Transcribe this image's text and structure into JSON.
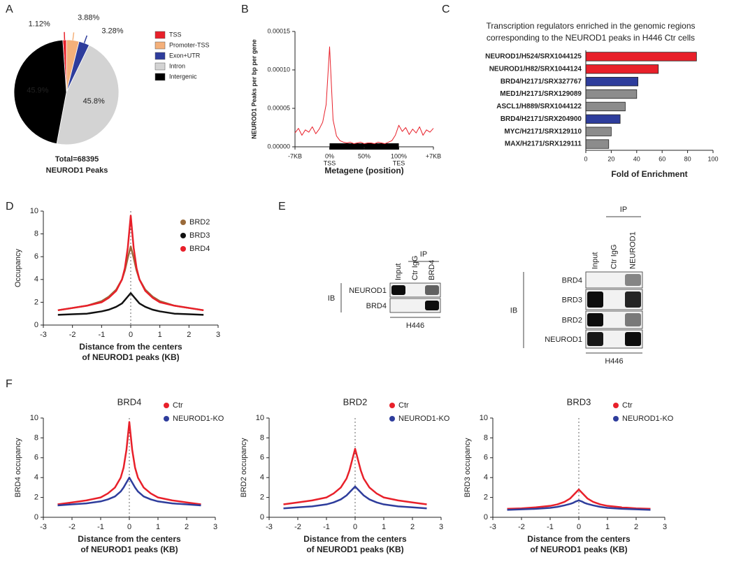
{
  "panels": [
    "A",
    "B",
    "C",
    "D",
    "E",
    "F"
  ],
  "chart_data": [
    {
      "type": "pie",
      "categories": [
        "TSS",
        "Promoter-TSS",
        "Exon+UTR",
        "Intron",
        "Intergenic"
      ],
      "values": [
        1.12,
        3.88,
        3.28,
        45.8,
        45.9
      ],
      "value_labels": [
        "1.12%",
        "3.88%",
        "3.28%",
        "45.8%",
        "45.9%"
      ],
      "colors": [
        "#e8202a",
        "#f4b07a",
        "#2e3d9c",
        "#d3d3d3",
        "#000000"
      ],
      "annotations": [
        "Total=68395",
        "NEUROD1 Peaks"
      ]
    },
    {
      "type": "line",
      "ylabel": "NEUROD1 Peaks per bp per gene",
      "xlabel": "Metagene (position)",
      "x": [
        0,
        5,
        10,
        15,
        20,
        25,
        30,
        35,
        40,
        45,
        50,
        55,
        60,
        65,
        70,
        75,
        80,
        85,
        90,
        95,
        100,
        105,
        110,
        115,
        120,
        125,
        130,
        135,
        140,
        145,
        150,
        155,
        160,
        165,
        170,
        175,
        180,
        185,
        190,
        195,
        200
      ],
      "series": [
        {
          "color": "#e8202a",
          "values": [
            1.8e-05,
            2.4e-05,
            1.5e-05,
            2.2e-05,
            1.9e-05,
            2.6e-05,
            1.7e-05,
            2.3e-05,
            3.2e-05,
            5.5e-05,
            0.00013,
            3.5e-05,
            1.4e-05,
            8e-06,
            6e-06,
            5e-06,
            6e-06,
            4e-06,
            5e-06,
            6e-06,
            4e-06,
            5e-06,
            5e-06,
            4e-06,
            6e-06,
            5e-06,
            4e-06,
            6e-06,
            8e-06,
            1.5e-05,
            2.8e-05,
            2e-05,
            2.5e-05,
            1.6e-05,
            2.3e-05,
            1.8e-05,
            2.6e-05,
            1.5e-05,
            2.2e-05,
            1.9e-05,
            2.4e-05
          ]
        }
      ],
      "xlim": [
        0,
        200
      ],
      "xticks": [
        {
          "value": 0,
          "label": "-7KB"
        },
        {
          "value": 50,
          "label": "0%",
          "sublabel": "TSS"
        },
        {
          "value": 100,
          "label": "50%"
        },
        {
          "value": 150,
          "label": "100%",
          "sublabel": "TES"
        },
        {
          "value": 200,
          "label": "+7KB"
        }
      ],
      "ylim": [
        0,
        0.00015
      ],
      "yticks": [
        {
          "value": 0,
          "label": "0.00000"
        },
        {
          "value": 5e-05,
          "label": "0.00005"
        },
        {
          "value": 0.0001,
          "label": "0.00010"
        },
        {
          "value": 0.00015,
          "label": "0.00015"
        }
      ]
    },
    {
      "type": "hbar",
      "title": [
        "Transcription regulators enriched in the genomic regions",
        "corresponding to the NEUROD1 peaks in H446 Ctr cells"
      ],
      "xlabel": "Fold of Enrichment",
      "categories": [
        "NEUROD1/H524/SRX1044125",
        "NEUROD1/H82/SRX1044124",
        "BRD4/H2171/SRX327767",
        "MED1/H2171/SRX129089",
        "ASCL1/H889/SRX1044122",
        "BRD4/H2171/SRX204900",
        "MYC/H2171/SRX129110",
        "MAX/H2171/SRX129111"
      ],
      "values": [
        87,
        57,
        41,
        40,
        31,
        27,
        20,
        18
      ],
      "colors": [
        "#e8202a",
        "#e8202a",
        "#2e3d9c",
        "#8c8c8c",
        "#8c8c8c",
        "#2e3d9c",
        "#8c8c8c",
        "#8c8c8c"
      ],
      "xlim": [
        0,
        100
      ],
      "xticks": [
        0,
        20,
        40,
        60,
        80,
        100
      ]
    },
    {
      "type": "line",
      "ylabel": "Occupancy",
      "xlabel": [
        "Distance from the centers",
        "of NEUROD1 peaks (KB)"
      ],
      "x": [
        -2.5,
        -2,
        -1.5,
        -1,
        -0.75,
        -0.5,
        -0.3,
        -0.2,
        -0.1,
        0,
        0.1,
        0.2,
        0.3,
        0.5,
        0.75,
        1,
        1.5,
        2,
        2.5
      ],
      "series": [
        {
          "name": "BRD2",
          "color": "#9a6a3a",
          "values": [
            1.3,
            1.5,
            1.7,
            2.1,
            2.5,
            3.1,
            4.0,
            4.8,
            5.9,
            6.9,
            5.9,
            4.8,
            4.0,
            3.1,
            2.5,
            2.1,
            1.7,
            1.5,
            1.3
          ]
        },
        {
          "name": "BRD3",
          "color": "#111111",
          "values": [
            0.9,
            0.95,
            1.0,
            1.2,
            1.35,
            1.6,
            1.9,
            2.2,
            2.5,
            2.8,
            2.5,
            2.2,
            1.9,
            1.6,
            1.35,
            1.2,
            1.0,
            0.95,
            0.9
          ]
        },
        {
          "name": "BRD4",
          "color": "#e8202a",
          "values": [
            1.3,
            1.5,
            1.7,
            2.0,
            2.4,
            3.0,
            4.0,
            5.0,
            6.8,
            9.6,
            6.8,
            5.0,
            4.0,
            3.0,
            2.4,
            2.0,
            1.7,
            1.5,
            1.3
          ]
        }
      ],
      "xlim": [
        -3,
        3
      ],
      "xticks": [
        -3,
        -2,
        -1,
        0,
        1,
        2,
        3
      ],
      "ylim": [
        0,
        10
      ],
      "yticks": [
        0,
        2,
        4,
        6,
        8,
        10
      ]
    },
    {
      "type": "line",
      "title": "BRD4",
      "ylabel": "BRD4 occupancy",
      "xlabel": [
        "Distance from the centers",
        "of NEUROD1 peaks (KB)"
      ],
      "x": [
        -2.5,
        -2,
        -1.5,
        -1,
        -0.75,
        -0.5,
        -0.3,
        -0.2,
        -0.1,
        0,
        0.1,
        0.2,
        0.3,
        0.5,
        0.75,
        1,
        1.5,
        2,
        2.5
      ],
      "series": [
        {
          "name": "Ctr",
          "color": "#e8202a",
          "values": [
            1.3,
            1.5,
            1.7,
            2.0,
            2.4,
            3.0,
            4.0,
            5.0,
            6.8,
            9.6,
            6.8,
            5.0,
            4.0,
            3.0,
            2.4,
            2.0,
            1.7,
            1.5,
            1.3
          ]
        },
        {
          "name": "NEUROD1-KO",
          "color": "#2e3d9c",
          "values": [
            1.2,
            1.3,
            1.4,
            1.6,
            1.8,
            2.1,
            2.6,
            3.0,
            3.5,
            4.0,
            3.5,
            3.0,
            2.6,
            2.1,
            1.8,
            1.6,
            1.4,
            1.3,
            1.2
          ]
        }
      ],
      "xlim": [
        -3,
        3
      ],
      "xticks": [
        -3,
        -2,
        -1,
        0,
        1,
        2,
        3
      ],
      "ylim": [
        0,
        10
      ],
      "yticks": [
        0,
        2,
        4,
        6,
        8,
        10
      ]
    },
    {
      "type": "line",
      "title": "BRD2",
      "ylabel": "BRD2 occupancy",
      "xlabel": [
        "Distance from the centers",
        "of NEUROD1 peaks (KB)"
      ],
      "x": [
        -2.5,
        -2,
        -1.5,
        -1,
        -0.75,
        -0.5,
        -0.3,
        -0.2,
        -0.1,
        0,
        0.1,
        0.2,
        0.3,
        0.5,
        0.75,
        1,
        1.5,
        2,
        2.5
      ],
      "series": [
        {
          "name": "Ctr",
          "color": "#e8202a",
          "values": [
            1.3,
            1.5,
            1.7,
            2.0,
            2.4,
            3.0,
            3.9,
            4.7,
            5.8,
            6.9,
            5.8,
            4.7,
            3.9,
            3.0,
            2.4,
            2.0,
            1.7,
            1.5,
            1.3
          ]
        },
        {
          "name": "NEUROD1-KO",
          "color": "#2e3d9c",
          "values": [
            0.9,
            1.0,
            1.1,
            1.3,
            1.5,
            1.8,
            2.2,
            2.5,
            2.8,
            3.1,
            2.8,
            2.5,
            2.2,
            1.8,
            1.5,
            1.3,
            1.1,
            1.0,
            0.9
          ]
        }
      ],
      "xlim": [
        -3,
        3
      ],
      "xticks": [
        -3,
        -2,
        -1,
        0,
        1,
        2,
        3
      ],
      "ylim": [
        0,
        10
      ],
      "yticks": [
        0,
        2,
        4,
        6,
        8,
        10
      ]
    },
    {
      "type": "line",
      "title": "BRD3",
      "ylabel": "BRD3 occupancy",
      "xlabel": [
        "Distance from the centers",
        "of NEUROD1 peaks (KB)"
      ],
      "x": [
        -2.5,
        -2,
        -1.5,
        -1,
        -0.75,
        -0.5,
        -0.3,
        -0.2,
        -0.1,
        0,
        0.1,
        0.2,
        0.3,
        0.5,
        0.75,
        1,
        1.5,
        2,
        2.5
      ],
      "series": [
        {
          "name": "Ctr",
          "color": "#e8202a",
          "values": [
            0.85,
            0.9,
            1.0,
            1.15,
            1.3,
            1.55,
            1.9,
            2.2,
            2.5,
            2.8,
            2.5,
            2.2,
            1.9,
            1.55,
            1.3,
            1.15,
            1.0,
            0.9,
            0.85
          ]
        },
        {
          "name": "NEUROD1-KO",
          "color": "#2e3d9c",
          "values": [
            0.75,
            0.8,
            0.85,
            0.95,
            1.05,
            1.2,
            1.35,
            1.45,
            1.6,
            1.7,
            1.6,
            1.45,
            1.35,
            1.2,
            1.05,
            0.95,
            0.85,
            0.8,
            0.75
          ]
        }
      ],
      "xlim": [
        -3,
        3
      ],
      "xticks": [
        -3,
        -2,
        -1,
        0,
        1,
        2,
        3
      ],
      "ylim": [
        0,
        10
      ],
      "yticks": [
        0,
        2,
        4,
        6,
        8,
        10
      ]
    }
  ],
  "blots": [
    {
      "ip": "IP",
      "columns": [
        "Input",
        "Ctr IgG",
        "BRD4"
      ],
      "ib": "IB",
      "rows": [
        "NEUROD1",
        "BRD4"
      ],
      "cell_line": "H446"
    },
    {
      "ip": "IP",
      "columns": [
        "Input",
        "Ctr IgG",
        "NEUROD1"
      ],
      "ib": "IB",
      "rows": [
        "BRD4",
        "BRD3",
        "BRD2",
        "NEUROD1"
      ],
      "cell_line": "H446"
    }
  ]
}
